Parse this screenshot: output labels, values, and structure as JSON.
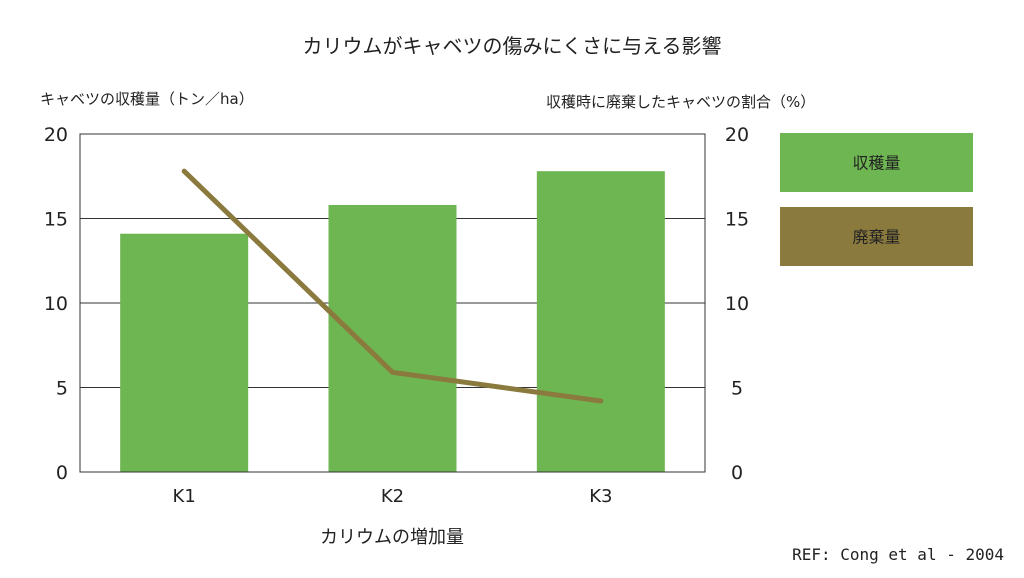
{
  "chart_data": {
    "type": "bar",
    "title": "カリウムがキャベツの傷みにくさに与える影響",
    "xlabel": "カリウムの増加量",
    "ylabel": "キャベツの収穫量（トン／ha）",
    "y2label": "収穫時に廃棄したキャベツの割合（%）",
    "categories": [
      "K1",
      "K2",
      "K3"
    ],
    "ylim": [
      0,
      20
    ],
    "y2lim": [
      0,
      20
    ],
    "yticks": [
      "0",
      "5",
      "10",
      "15",
      "20"
    ],
    "y2ticks": [
      "0",
      "5",
      "10",
      "15",
      "20"
    ],
    "series": [
      {
        "name": "収穫量",
        "kind": "bar",
        "axis": "left",
        "color": "#6eb652",
        "values": [
          14.1,
          15.8,
          17.8
        ]
      },
      {
        "name": "廃棄量",
        "kind": "line",
        "axis": "right",
        "color": "#8b7a3e",
        "values": [
          17.8,
          5.9,
          4.2
        ]
      }
    ],
    "grid": true,
    "legend_position": "right"
  },
  "source": "REF: Cong et al - 2004"
}
